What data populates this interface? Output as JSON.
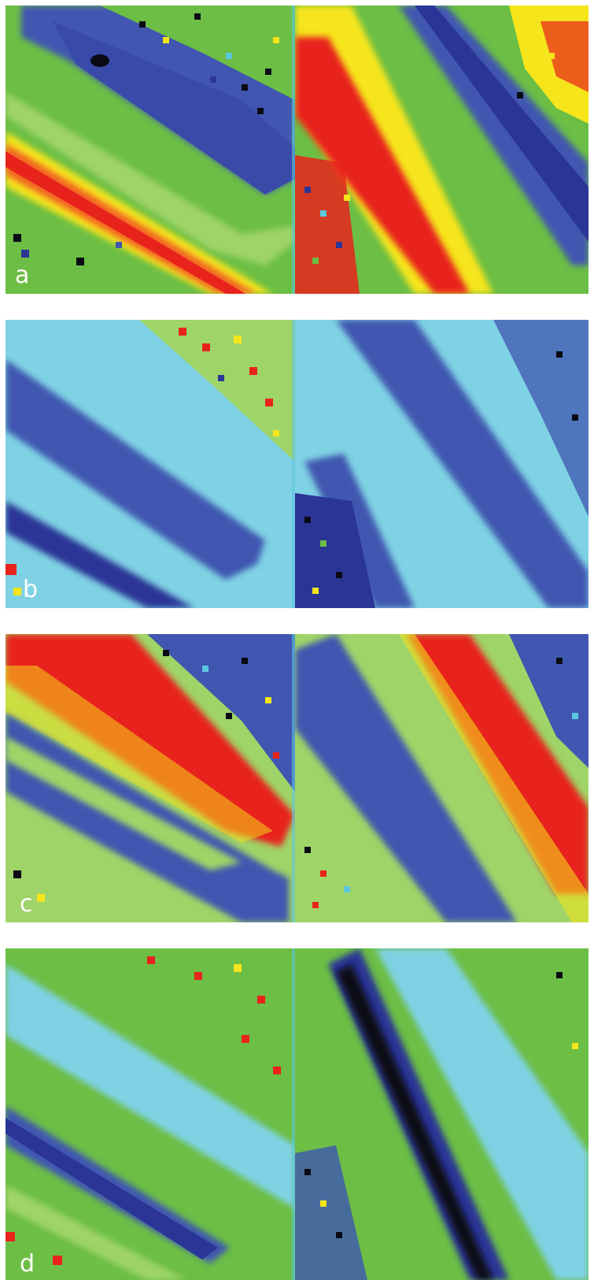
{
  "figure": {
    "panels": [
      {
        "letter": "a",
        "scheme": "a"
      },
      {
        "letter": "b",
        "scheme": "b"
      },
      {
        "letter": "c",
        "scheme": "c"
      },
      {
        "letter": "d",
        "scheme": "d"
      }
    ]
  },
  "colors": {
    "green": "#6cbe45",
    "light_green": "#9fd468",
    "cyan": "#5ec6e0",
    "light_blue": "#7fd2e4",
    "blue": "#3f57b0",
    "dark_blue": "#2a3596",
    "purple": "#3a2c7a",
    "black": "#0a0a14",
    "red": "#e8231c",
    "orange": "#f26522",
    "yellow": "#f6e51a"
  }
}
